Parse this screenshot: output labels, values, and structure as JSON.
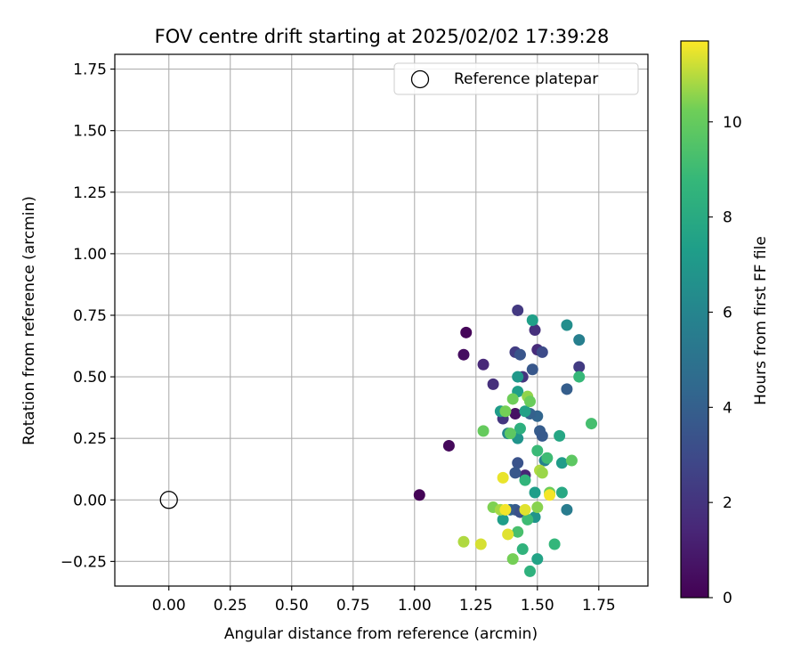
{
  "chart_data": {
    "type": "scatter",
    "title": "FOV centre drift starting at 2025/02/02 17:39:28",
    "xlabel": "Angular distance from reference (arcmin)",
    "ylabel": "Rotation from reference (arcmin)",
    "xlim": [
      -0.22,
      1.95
    ],
    "ylim": [
      -0.35,
      1.81
    ],
    "xticks": [
      "0.00",
      "0.25",
      "0.50",
      "0.75",
      "1.00",
      "1.25",
      "1.50",
      "1.75"
    ],
    "yticks": [
      "−0.25",
      "0.00",
      "0.25",
      "0.50",
      "0.75",
      "1.00",
      "1.25",
      "1.50",
      "1.75"
    ],
    "grid": true,
    "legend": {
      "placement": "top-right",
      "entries": [
        "Reference platepar"
      ]
    },
    "reference_point": {
      "x": 0.0,
      "y": 0.0
    },
    "colorbar": {
      "label": "Hours from first FF file",
      "colormap": "viridis",
      "range": [
        0,
        11.7
      ],
      "ticks": [
        "0",
        "2",
        "4",
        "6",
        "8",
        "10"
      ]
    },
    "points": [
      {
        "x": 1.02,
        "y": 0.02,
        "c": 0.1
      },
      {
        "x": 1.14,
        "y": 0.22,
        "c": 0.3
      },
      {
        "x": 1.2,
        "y": 0.59,
        "c": 0.5
      },
      {
        "x": 1.21,
        "y": 0.68,
        "c": 0.2
      },
      {
        "x": 1.28,
        "y": 0.55,
        "c": 1.5
      },
      {
        "x": 1.32,
        "y": 0.47,
        "c": 1.8
      },
      {
        "x": 1.36,
        "y": 0.35,
        "c": 1.9
      },
      {
        "x": 1.36,
        "y": 0.33,
        "c": 2.1
      },
      {
        "x": 1.41,
        "y": 0.35,
        "c": 0.6
      },
      {
        "x": 1.42,
        "y": 0.77,
        "c": 2.2
      },
      {
        "x": 1.44,
        "y": 0.5,
        "c": 2.0
      },
      {
        "x": 1.41,
        "y": 0.6,
        "c": 2.4
      },
      {
        "x": 1.43,
        "y": 0.59,
        "c": 3.5
      },
      {
        "x": 1.49,
        "y": 0.69,
        "c": 1.8
      },
      {
        "x": 1.5,
        "y": 0.61,
        "c": 1.6
      },
      {
        "x": 1.52,
        "y": 0.6,
        "c": 3.0
      },
      {
        "x": 1.48,
        "y": 0.53,
        "c": 3.6
      },
      {
        "x": 1.45,
        "y": 0.1,
        "c": 1.4
      },
      {
        "x": 1.42,
        "y": 0.15,
        "c": 3.4
      },
      {
        "x": 1.41,
        "y": 0.11,
        "c": 3.6
      },
      {
        "x": 1.39,
        "y": -0.04,
        "c": 4.6
      },
      {
        "x": 1.41,
        "y": -0.04,
        "c": 3.8
      },
      {
        "x": 1.43,
        "y": -0.05,
        "c": 3.3
      },
      {
        "x": 1.51,
        "y": 0.28,
        "c": 3.8
      },
      {
        "x": 1.52,
        "y": 0.26,
        "c": 3.7
      },
      {
        "x": 1.5,
        "y": 0.34,
        "c": 4.3
      },
      {
        "x": 1.47,
        "y": 0.35,
        "c": 4.1
      },
      {
        "x": 1.62,
        "y": 0.45,
        "c": 3.9
      },
      {
        "x": 1.67,
        "y": 0.54,
        "c": 2.3
      },
      {
        "x": 1.62,
        "y": -0.04,
        "c": 5.5
      },
      {
        "x": 1.53,
        "y": 0.16,
        "c": 5.8
      },
      {
        "x": 1.48,
        "y": 0.73,
        "c": 7.4
      },
      {
        "x": 1.62,
        "y": 0.71,
        "c": 6.5
      },
      {
        "x": 1.67,
        "y": 0.65,
        "c": 5.7
      },
      {
        "x": 1.42,
        "y": 0.5,
        "c": 7.0
      },
      {
        "x": 1.42,
        "y": 0.44,
        "c": 7.4
      },
      {
        "x": 1.38,
        "y": 0.27,
        "c": 6.0
      },
      {
        "x": 1.42,
        "y": 0.25,
        "c": 6.8
      },
      {
        "x": 1.35,
        "y": 0.36,
        "c": 7.2
      },
      {
        "x": 1.45,
        "y": 0.36,
        "c": 7.5
      },
      {
        "x": 1.49,
        "y": 0.03,
        "c": 7.3
      },
      {
        "x": 1.49,
        "y": -0.07,
        "c": 6.8
      },
      {
        "x": 1.36,
        "y": -0.08,
        "c": 7.3
      },
      {
        "x": 1.5,
        "y": -0.24,
        "c": 7.6
      },
      {
        "x": 1.6,
        "y": 0.15,
        "c": 7.2
      },
      {
        "x": 1.59,
        "y": 0.26,
        "c": 7.8
      },
      {
        "x": 1.6,
        "y": 0.03,
        "c": 7.9
      },
      {
        "x": 1.43,
        "y": 0.29,
        "c": 8.3
      },
      {
        "x": 1.45,
        "y": 0.08,
        "c": 8.6
      },
      {
        "x": 1.5,
        "y": 0.2,
        "c": 8.9
      },
      {
        "x": 1.54,
        "y": 0.17,
        "c": 9.0
      },
      {
        "x": 1.44,
        "y": -0.2,
        "c": 8.5
      },
      {
        "x": 1.47,
        "y": -0.29,
        "c": 8.4
      },
      {
        "x": 1.57,
        "y": -0.18,
        "c": 8.7
      },
      {
        "x": 1.42,
        "y": -0.13,
        "c": 9.3
      },
      {
        "x": 1.46,
        "y": -0.08,
        "c": 9.0
      },
      {
        "x": 1.67,
        "y": 0.5,
        "c": 8.8
      },
      {
        "x": 1.72,
        "y": 0.31,
        "c": 9.2
      },
      {
        "x": 1.64,
        "y": 0.16,
        "c": 9.8
      },
      {
        "x": 1.28,
        "y": 0.28,
        "c": 10.0
      },
      {
        "x": 1.37,
        "y": 0.36,
        "c": 10.3
      },
      {
        "x": 1.4,
        "y": 0.41,
        "c": 10.2
      },
      {
        "x": 1.46,
        "y": 0.42,
        "c": 10.6
      },
      {
        "x": 1.47,
        "y": 0.4,
        "c": 10.1
      },
      {
        "x": 1.39,
        "y": 0.27,
        "c": 9.8
      },
      {
        "x": 1.32,
        "y": -0.03,
        "c": 10.4
      },
      {
        "x": 1.35,
        "y": -0.04,
        "c": 10.8
      },
      {
        "x": 1.5,
        "y": -0.03,
        "c": 10.5
      },
      {
        "x": 1.51,
        "y": 0.12,
        "c": 10.9
      },
      {
        "x": 1.52,
        "y": 0.11,
        "c": 10.7
      },
      {
        "x": 1.55,
        "y": 0.03,
        "c": 10.2
      },
      {
        "x": 1.4,
        "y": -0.24,
        "c": 10.3
      },
      {
        "x": 1.2,
        "y": -0.17,
        "c": 10.9
      },
      {
        "x": 1.27,
        "y": -0.18,
        "c": 11.3
      },
      {
        "x": 1.38,
        "y": -0.14,
        "c": 11.4
      },
      {
        "x": 1.36,
        "y": 0.09,
        "c": 11.5
      },
      {
        "x": 1.37,
        "y": -0.04,
        "c": 11.6
      },
      {
        "x": 1.45,
        "y": -0.04,
        "c": 11.4
      },
      {
        "x": 1.55,
        "y": 0.02,
        "c": 11.6
      }
    ]
  }
}
